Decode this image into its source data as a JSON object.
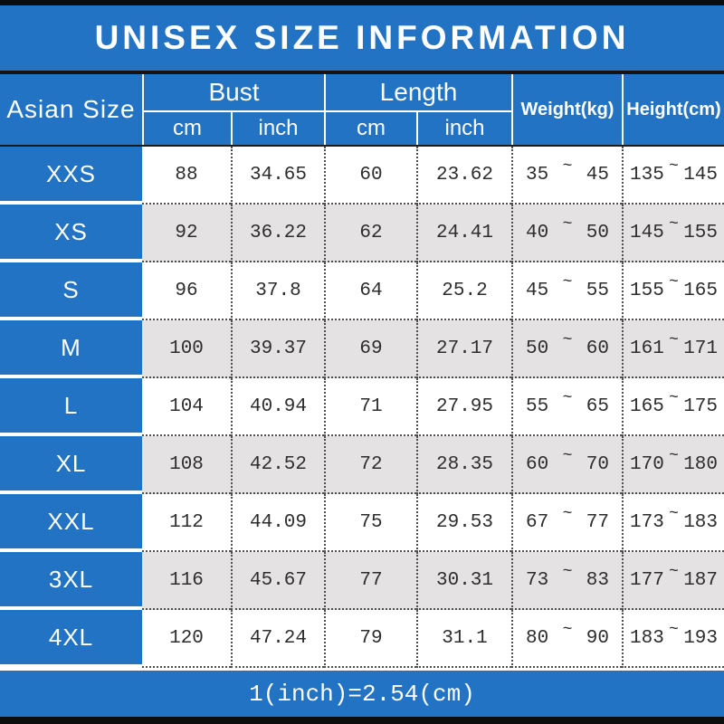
{
  "title": "UNISEX SIZE INFORMATION",
  "header": {
    "corner": "Asian Size",
    "bust": "Bust",
    "length": "Length",
    "cm": "cm",
    "inch": "inch",
    "weight": "Weight(kg)",
    "height": "Height(cm)"
  },
  "tilde": "~",
  "footer_note": "1(inch)=2.54(cm)",
  "colors": {
    "band_blue": "#2273c4",
    "alt_row_gray": "#e4e2e3",
    "data_text": "#2e2c2d",
    "bar_black": "#0d0d0d",
    "header_text": "#ffffff"
  },
  "chart_data": {
    "type": "table",
    "title": "UNISEX SIZE INFORMATION",
    "columns": [
      "Asian Size",
      "Bust cm",
      "Bust inch",
      "Length cm",
      "Length inch",
      "Weight(kg)",
      "Height(cm)"
    ],
    "unit_note": "1(inch)=2.54(cm)",
    "rows": [
      {
        "size": "XXS",
        "bust_cm": 88,
        "bust_inch": 34.65,
        "length_cm": 60,
        "length_inch": 23.62,
        "weight_kg": [
          35,
          45
        ],
        "height_cm": [
          135,
          145
        ]
      },
      {
        "size": "XS",
        "bust_cm": 92,
        "bust_inch": 36.22,
        "length_cm": 62,
        "length_inch": 24.41,
        "weight_kg": [
          40,
          50
        ],
        "height_cm": [
          145,
          155
        ]
      },
      {
        "size": "S",
        "bust_cm": 96,
        "bust_inch": 37.8,
        "length_cm": 64,
        "length_inch": 25.2,
        "weight_kg": [
          45,
          55
        ],
        "height_cm": [
          155,
          165
        ]
      },
      {
        "size": "M",
        "bust_cm": 100,
        "bust_inch": 39.37,
        "length_cm": 69,
        "length_inch": 27.17,
        "weight_kg": [
          50,
          60
        ],
        "height_cm": [
          161,
          171
        ]
      },
      {
        "size": "L",
        "bust_cm": 104,
        "bust_inch": 40.94,
        "length_cm": 71,
        "length_inch": 27.95,
        "weight_kg": [
          55,
          65
        ],
        "height_cm": [
          165,
          175
        ]
      },
      {
        "size": "XL",
        "bust_cm": 108,
        "bust_inch": 42.52,
        "length_cm": 72,
        "length_inch": 28.35,
        "weight_kg": [
          60,
          70
        ],
        "height_cm": [
          170,
          180
        ]
      },
      {
        "size": "XXL",
        "bust_cm": 112,
        "bust_inch": 44.09,
        "length_cm": 75,
        "length_inch": 29.53,
        "weight_kg": [
          67,
          77
        ],
        "height_cm": [
          173,
          183
        ]
      },
      {
        "size": "3XL",
        "bust_cm": 116,
        "bust_inch": 45.67,
        "length_cm": 77,
        "length_inch": 30.31,
        "weight_kg": [
          73,
          83
        ],
        "height_cm": [
          177,
          187
        ]
      },
      {
        "size": "4XL",
        "bust_cm": 120,
        "bust_inch": 47.24,
        "length_cm": 79,
        "length_inch": 31.1,
        "weight_kg": [
          80,
          90
        ],
        "height_cm": [
          183,
          193
        ]
      }
    ]
  }
}
